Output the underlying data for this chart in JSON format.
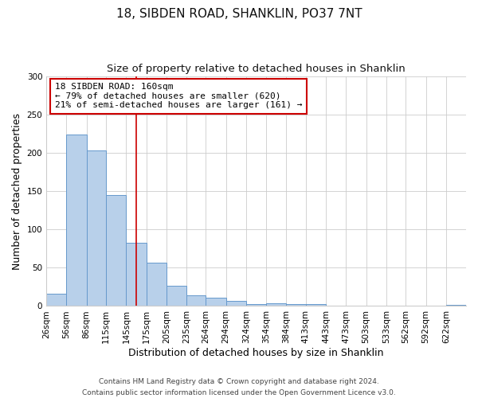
{
  "title": "18, SIBDEN ROAD, SHANKLIN, PO37 7NT",
  "subtitle": "Size of property relative to detached houses in Shanklin",
  "xlabel": "Distribution of detached houses by size in Shanklin",
  "ylabel": "Number of detached properties",
  "footer_line1": "Contains HM Land Registry data © Crown copyright and database right 2024.",
  "footer_line2": "Contains public sector information licensed under the Open Government Licence v3.0.",
  "bin_labels": [
    "26sqm",
    "56sqm",
    "86sqm",
    "115sqm",
    "145sqm",
    "175sqm",
    "205sqm",
    "235sqm",
    "264sqm",
    "294sqm",
    "324sqm",
    "354sqm",
    "384sqm",
    "413sqm",
    "443sqm",
    "473sqm",
    "503sqm",
    "533sqm",
    "562sqm",
    "592sqm",
    "622sqm"
  ],
  "bar_heights": [
    16,
    224,
    203,
    145,
    82,
    57,
    26,
    14,
    11,
    7,
    3,
    4,
    3,
    3,
    0,
    0,
    0,
    0,
    0,
    0,
    2
  ],
  "bar_color": "#b8d0ea",
  "bar_edgecolor": "#6699cc",
  "bar_linewidth": 0.7,
  "property_line_x": 160,
  "bin_edges": [
    26,
    56,
    86,
    115,
    145,
    175,
    205,
    235,
    264,
    294,
    324,
    354,
    384,
    413,
    443,
    473,
    503,
    533,
    562,
    592,
    622
  ],
  "last_bar_width": 30,
  "vline_color": "#cc0000",
  "vline_linewidth": 1.2,
  "annotation_title": "18 SIBDEN ROAD: 160sqm",
  "annotation_line1": "← 79% of detached houses are smaller (620)",
  "annotation_line2": "21% of semi-detached houses are larger (161) →",
  "annotation_box_color": "#cc0000",
  "annotation_text_color": "#000000",
  "ylim": [
    0,
    300
  ],
  "yticks": [
    0,
    50,
    100,
    150,
    200,
    250,
    300
  ],
  "background_color": "#ffffff",
  "grid_color": "#cccccc",
  "title_fontsize": 11,
  "subtitle_fontsize": 9.5,
  "axis_label_fontsize": 9,
  "tick_fontsize": 7.5,
  "annotation_fontsize": 8,
  "footer_fontsize": 6.5
}
